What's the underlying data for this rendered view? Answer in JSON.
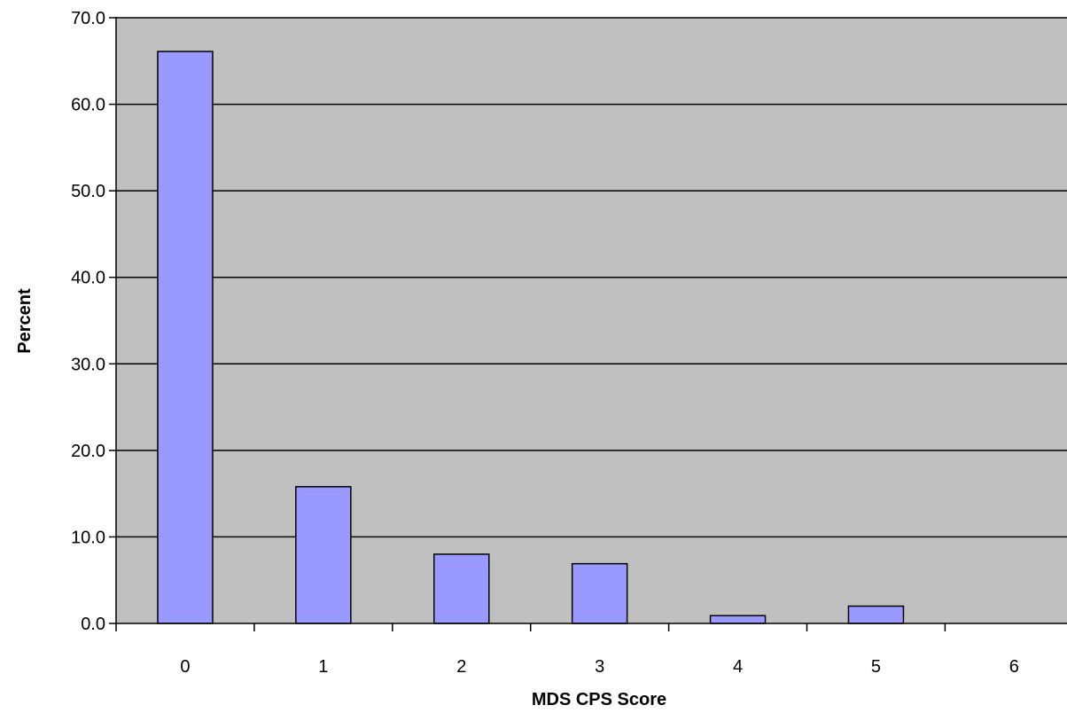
{
  "chart_data": {
    "type": "bar",
    "title": "",
    "xlabel": "MDS CPS Score",
    "ylabel": "Percent",
    "categories": [
      "0",
      "1",
      "2",
      "3",
      "4",
      "5",
      "6"
    ],
    "values": [
      66.1,
      15.8,
      8.0,
      6.9,
      0.9,
      2.0,
      0.0
    ],
    "ylim": [
      0,
      70
    ],
    "yticks": [
      "0.0",
      "10.0",
      "20.0",
      "30.0",
      "40.0",
      "50.0",
      "60.0",
      "70.0"
    ],
    "grid": true,
    "legend": "none",
    "colors": {
      "plot_background": "#c0c0c0",
      "bar_fill": "#9999ff",
      "bar_stroke": "#000000",
      "gridline": "#000000"
    }
  }
}
